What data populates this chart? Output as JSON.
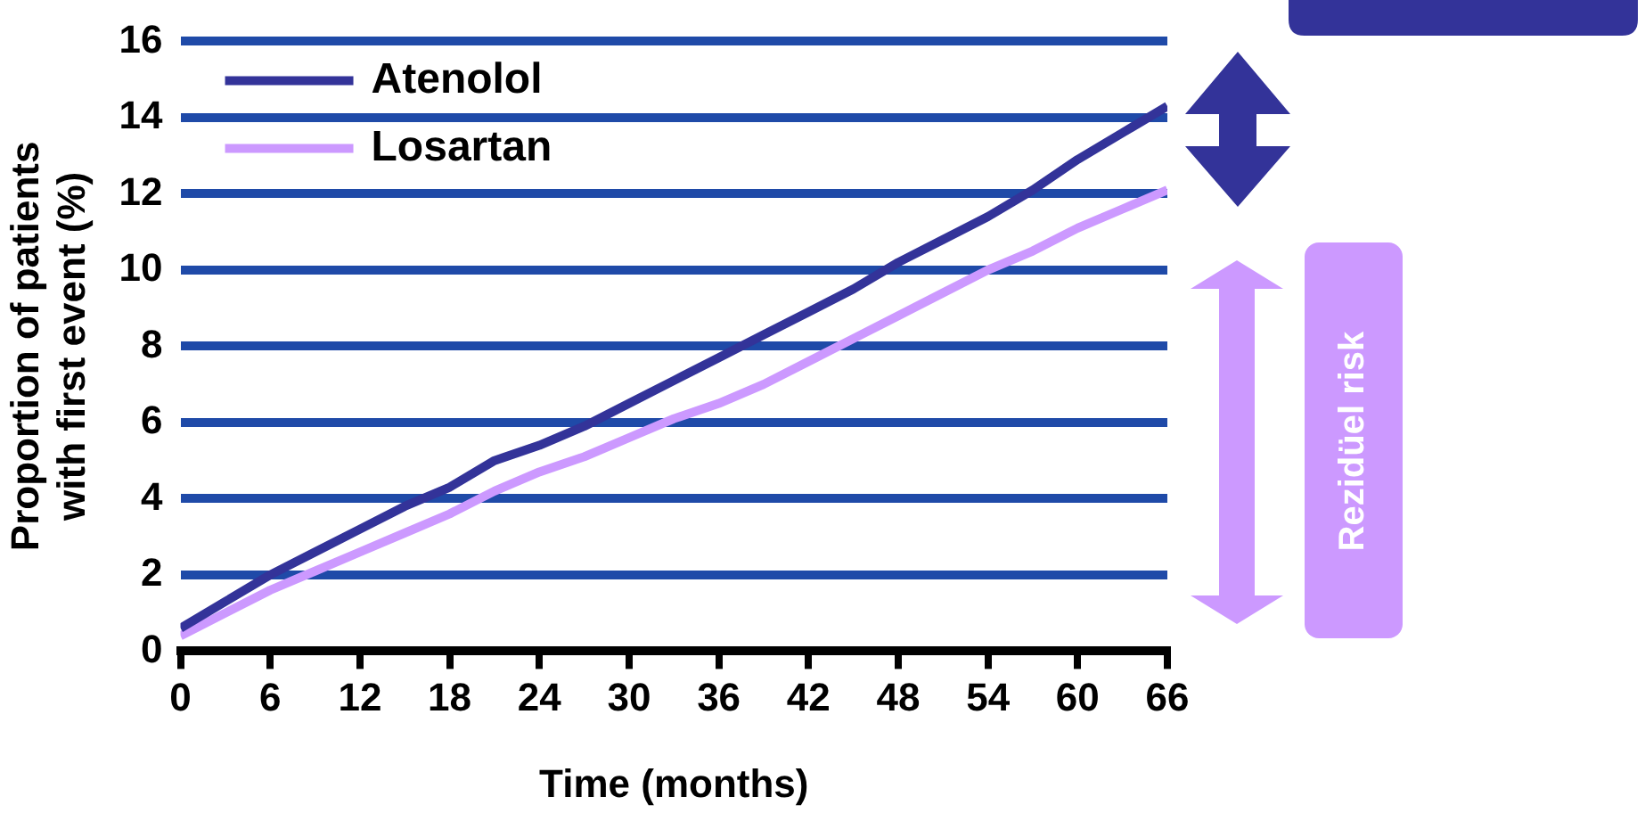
{
  "chart_data": {
    "type": "line",
    "xlabel": "Time (months)",
    "ylabel": "Proportion of patients\nwith first event (%)",
    "x": [
      0,
      3,
      6,
      9,
      12,
      15,
      18,
      21,
      24,
      27,
      30,
      33,
      36,
      39,
      42,
      45,
      48,
      51,
      54,
      57,
      60,
      63,
      66
    ],
    "series": [
      {
        "name": "Atenolol",
        "color": "#333399",
        "values": [
          0.6,
          1.3,
          2.0,
          2.6,
          3.2,
          3.8,
          4.3,
          5.0,
          5.4,
          5.9,
          6.5,
          7.1,
          7.7,
          8.3,
          8.9,
          9.5,
          10.2,
          10.8,
          11.4,
          12.1,
          12.9,
          13.6,
          14.3
        ]
      },
      {
        "name": "Losartan",
        "color": "#cc99ff",
        "values": [
          0.4,
          1.0,
          1.6,
          2.1,
          2.6,
          3.1,
          3.6,
          4.2,
          4.7,
          5.1,
          5.6,
          6.1,
          6.5,
          7.0,
          7.6,
          8.2,
          8.8,
          9.4,
          10.0,
          10.5,
          11.1,
          11.6,
          12.1
        ]
      }
    ],
    "xlim": [
      0,
      66
    ],
    "xticks": [
      0,
      6,
      12,
      18,
      24,
      30,
      36,
      42,
      48,
      54,
      60,
      66
    ],
    "ylim": [
      0,
      16
    ],
    "yticks": [
      0,
      2,
      4,
      6,
      8,
      10,
      12,
      14,
      16
    ],
    "grid": "y",
    "legend": "top left",
    "marker": "none",
    "line_style": "solid",
    "annotations": [
      "Rezidüel risk"
    ]
  }
}
